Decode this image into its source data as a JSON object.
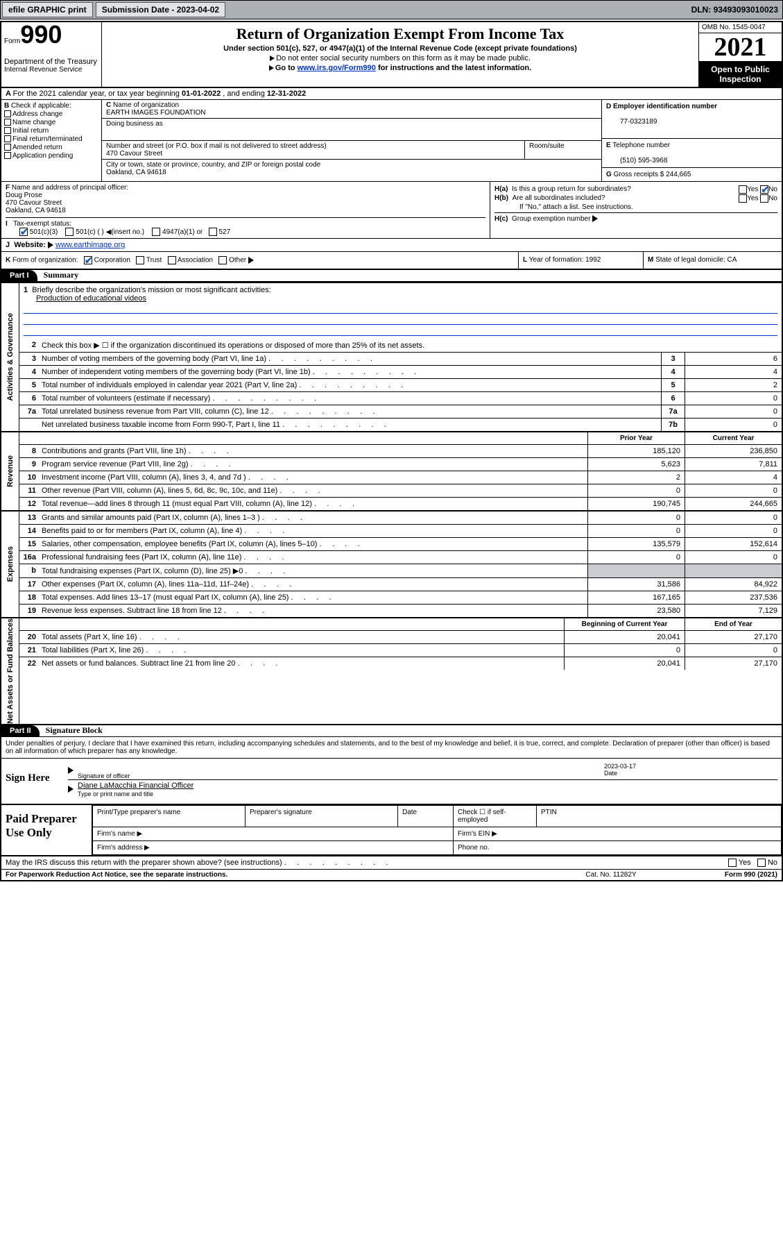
{
  "topbar": {
    "efile": "efile GRAPHIC print",
    "subdate_label": "Submission Date - ",
    "subdate": "2023-04-02",
    "dln_label": "DLN: ",
    "dln": "93493093010023"
  },
  "header": {
    "form_prefix": "Form",
    "form_num": "990",
    "dept": "Department of the Treasury",
    "irs": "Internal Revenue Service",
    "title": "Return of Organization Exempt From Income Tax",
    "sub1": "Under section 501(c), 527, or 4947(a)(1) of the Internal Revenue Code (except private foundations)",
    "sub2": "Do not enter social security numbers on this form as it may be made public.",
    "sub3_pre": "Go to ",
    "sub3_link": "www.irs.gov/Form990",
    "sub3_post": " for instructions and the latest information.",
    "omb": "OMB No. 1545-0047",
    "year": "2021",
    "open": "Open to Public Inspection"
  },
  "lineA": {
    "pre": "For the 2021 calendar year, or tax year beginning ",
    "begin": "01-01-2022",
    "mid": " , and ending ",
    "end": "12-31-2022"
  },
  "B": {
    "hdr": "Check if applicable:",
    "items": [
      "Address change",
      "Name change",
      "Initial return",
      "Final return/terminated",
      "Amended return",
      "Application pending"
    ]
  },
  "C": {
    "name_lbl": "Name of organization",
    "name": "EARTH IMAGES FOUNDATION",
    "dba_lbl": "Doing business as",
    "addr_lbl": "Number and street (or P.O. box if mail is not delivered to street address)",
    "addr": "470 Cavour Street",
    "room_lbl": "Room/suite",
    "city_lbl": "City or town, state or province, country, and ZIP or foreign postal code",
    "city": "Oakland, CA  94618"
  },
  "D": {
    "lbl": "Employer identification number",
    "val": "77-0323189"
  },
  "E": {
    "lbl": "Telephone number",
    "val": "(510) 595-3968"
  },
  "G": {
    "lbl": "Gross receipts $",
    "val": "244,665"
  },
  "F": {
    "lbl": "Name and address of principal officer:",
    "name": "Doug Prose",
    "addr1": "470 Cavour Street",
    "addr2": "Oakland, CA  94618"
  },
  "H": {
    "a": "Is this a group return for subordinates?",
    "b": "Are all subordinates included?",
    "b_note": "If \"No,\" attach a list. See instructions.",
    "c": "Group exemption number ",
    "yes": "Yes",
    "no": "No"
  },
  "I": {
    "lbl": "Tax-exempt status:",
    "o1": "501(c)(3)",
    "o2": "501(c) (  ) ",
    "o2b": "(insert no.)",
    "o3": "4947(a)(1) or",
    "o4": "527"
  },
  "J": {
    "lbl": "Website: ",
    "val": "www.earthimage.org"
  },
  "K": {
    "lbl": "Form of organization:",
    "o": [
      "Corporation",
      "Trust",
      "Association",
      "Other"
    ]
  },
  "L": {
    "lbl": "Year of formation: ",
    "val": "1992"
  },
  "M": {
    "lbl": "State of legal domicile: ",
    "val": "CA"
  },
  "partI": {
    "tag": "Part I",
    "title": "Summary"
  },
  "mission": {
    "q": "Briefly describe the organization's mission or most significant activities:",
    "a": "Production of educational videos"
  },
  "gov": {
    "line2": "Check this box ▶ ☐  if the organization discontinued its operations or disposed of more than 25% of its net assets.",
    "rows": [
      {
        "n": "3",
        "d": "Number of voting members of the governing body (Part VI, line 1a)",
        "b": "3",
        "v": "6"
      },
      {
        "n": "4",
        "d": "Number of independent voting members of the governing body (Part VI, line 1b)",
        "b": "4",
        "v": "4"
      },
      {
        "n": "5",
        "d": "Total number of individuals employed in calendar year 2021 (Part V, line 2a)",
        "b": "5",
        "v": "2"
      },
      {
        "n": "6",
        "d": "Total number of volunteers (estimate if necessary)",
        "b": "6",
        "v": "0"
      },
      {
        "n": "7a",
        "d": "Total unrelated business revenue from Part VIII, column (C), line 12",
        "b": "7a",
        "v": "0"
      },
      {
        "n": "",
        "d": "Net unrelated business taxable income from Form 990-T, Part I, line 11",
        "b": "7b",
        "v": "0"
      }
    ]
  },
  "col_hdr": {
    "py": "Prior Year",
    "cy": "Current Year",
    "boy": "Beginning of Current Year",
    "eoy": "End of Year"
  },
  "rev": [
    {
      "n": "8",
      "d": "Contributions and grants (Part VIII, line 1h)",
      "p": "185,120",
      "c": "236,850"
    },
    {
      "n": "9",
      "d": "Program service revenue (Part VIII, line 2g)",
      "p": "5,623",
      "c": "7,811"
    },
    {
      "n": "10",
      "d": "Investment income (Part VIII, column (A), lines 3, 4, and 7d )",
      "p": "2",
      "c": "4"
    },
    {
      "n": "11",
      "d": "Other revenue (Part VIII, column (A), lines 5, 6d, 8c, 9c, 10c, and 11e)",
      "p": "0",
      "c": "0"
    },
    {
      "n": "12",
      "d": "Total revenue—add lines 8 through 11 (must equal Part VIII, column (A), line 12)",
      "p": "190,745",
      "c": "244,665"
    }
  ],
  "exp": [
    {
      "n": "13",
      "d": "Grants and similar amounts paid (Part IX, column (A), lines 1–3 )",
      "p": "0",
      "c": "0"
    },
    {
      "n": "14",
      "d": "Benefits paid to or for members (Part IX, column (A), line 4)",
      "p": "0",
      "c": "0"
    },
    {
      "n": "15",
      "d": "Salaries, other compensation, employee benefits (Part IX, column (A), lines 5–10)",
      "p": "135,579",
      "c": "152,614"
    },
    {
      "n": "16a",
      "d": "Professional fundraising fees (Part IX, column (A), line 11e)",
      "p": "0",
      "c": "0"
    },
    {
      "n": "b",
      "d": "Total fundraising expenses (Part IX, column (D), line 25) ▶0",
      "p": "",
      "c": "",
      "shade": true
    },
    {
      "n": "17",
      "d": "Other expenses (Part IX, column (A), lines 11a–11d, 11f–24e)",
      "p": "31,586",
      "c": "84,922"
    },
    {
      "n": "18",
      "d": "Total expenses. Add lines 13–17 (must equal Part IX, column (A), line 25)",
      "p": "167,165",
      "c": "237,536"
    },
    {
      "n": "19",
      "d": "Revenue less expenses. Subtract line 18 from line 12",
      "p": "23,580",
      "c": "7,129"
    }
  ],
  "net": [
    {
      "n": "20",
      "d": "Total assets (Part X, line 16)",
      "p": "20,041",
      "c": "27,170"
    },
    {
      "n": "21",
      "d": "Total liabilities (Part X, line 26)",
      "p": "0",
      "c": "0"
    },
    {
      "n": "22",
      "d": "Net assets or fund balances. Subtract line 21 from line 20",
      "p": "20,041",
      "c": "27,170"
    }
  ],
  "tabs": {
    "gov": "Activities & Governance",
    "rev": "Revenue",
    "exp": "Expenses",
    "net": "Net Assets or Fund Balances"
  },
  "partII": {
    "tag": "Part II",
    "title": "Signature Block"
  },
  "sig": {
    "intro": "Under penalties of perjury, I declare that I have examined this return, including accompanying schedules and statements, and to the best of my knowledge and belief, it is true, correct, and complete. Declaration of preparer (other than officer) is based on all information of which preparer has any knowledge.",
    "here": "Sign Here",
    "sig_lbl": "Signature of officer",
    "date_lbl": "Date",
    "date": "2023-03-17",
    "name": "Diane LaMacchia  Financial Officer",
    "name_lbl": "Type or print name and title"
  },
  "paid": {
    "title": "Paid Preparer Use Only",
    "h": [
      "Print/Type preparer's name",
      "Preparer's signature",
      "Date"
    ],
    "chk": "Check ☐ if self-employed",
    "ptin": "PTIN",
    "firm": "Firm's name   ▶",
    "ein": "Firm's EIN ▶",
    "addr": "Firm's address ▶",
    "phone": "Phone no."
  },
  "bottom": {
    "q": "May the IRS discuss this return with the preparer shown above? (see instructions)",
    "yes": "Yes",
    "no": "No"
  },
  "foot": {
    "a": "For Paperwork Reduction Act Notice, see the separate instructions.",
    "b": "Cat. No. 11282Y",
    "c": "Form 990 (2021)"
  }
}
